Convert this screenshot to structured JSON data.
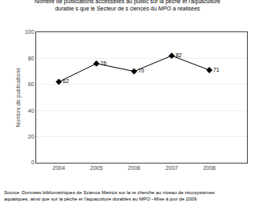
{
  "chart_data": {
    "type": "line",
    "title": "Nombre de publications accessibles au public sur la pêche et l'aquaculture\ndurable s que le Secteur de s ciences du MPO a réalisées",
    "y_label": "Nombre de publications",
    "x": [
      2004,
      2005,
      2006,
      2007,
      2008
    ],
    "values": [
      62,
      76,
      70,
      82,
      71
    ],
    "color": "#000000",
    "marker": "diamond",
    "data_labels": true,
    "xlim": [
      2003.4,
      2009.0
    ],
    "xticks": [
      2004,
      2005,
      2006,
      2007,
      2008
    ],
    "ylim": [
      0,
      100
    ],
    "yticks": [
      0,
      20,
      40,
      60,
      80,
      100
    ],
    "grid": true,
    "annotations": [
      "Source :Données bibliométriques de Science Metrics sur la re cherche au niveau de récosystèmes\naquatiques, ainsi que sur la pêche et l'aquaculture durables au MPO –Mise à jour de 2009."
    ]
  }
}
